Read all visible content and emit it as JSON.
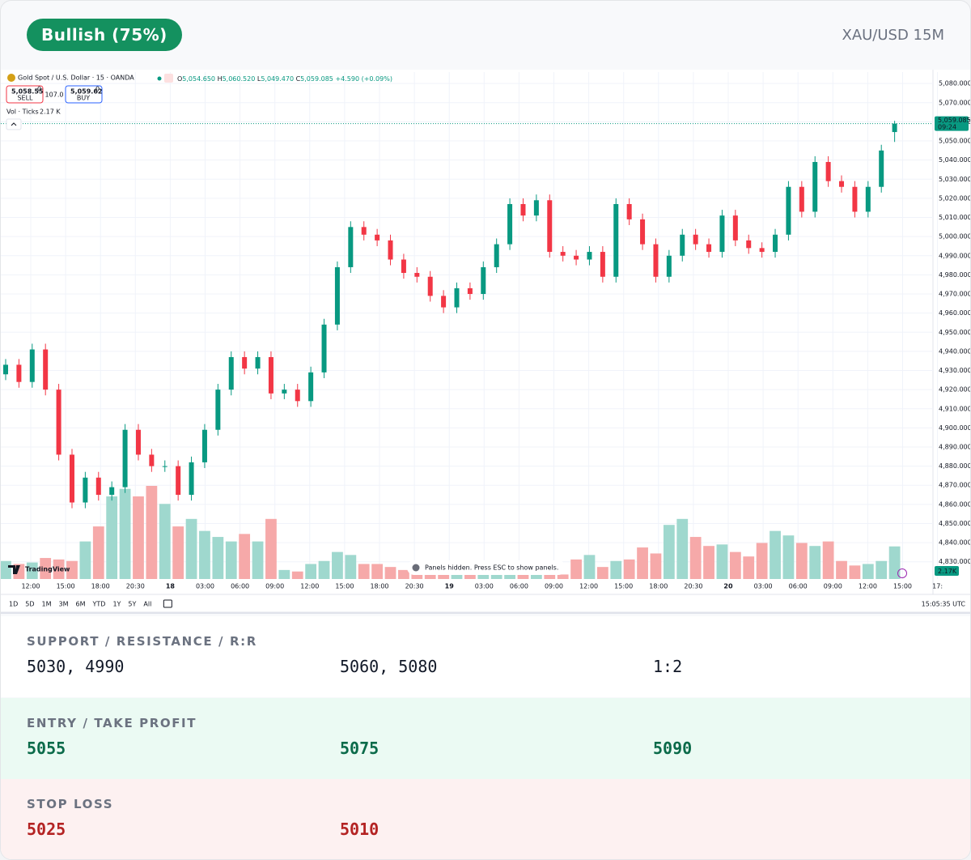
{
  "header": {
    "badge": "Bullish (75%)",
    "symbol": "XAU/USD 15M"
  },
  "chart_data": {
    "type": "candlestick",
    "title": "Gold Spot / U.S. Dollar · 15 · OANDA",
    "legend": [
      {
        "key": "O",
        "value": "5,054.650"
      },
      {
        "key": "H",
        "value": "5,060.520"
      },
      {
        "key": "L",
        "value": "5,049.470"
      },
      {
        "key": "C",
        "value": "5,059.085"
      }
    ],
    "change": "+4.590 (+0.09%)",
    "sell": {
      "price": "5,058.55",
      "sup": "0",
      "label": "SELL"
    },
    "spread": "107.0",
    "buy": {
      "price": "5,059.62",
      "sup": "0",
      "label": "BUY"
    },
    "volume_title": "Vol · Ticks",
    "volume_value": "2.17 K",
    "last_price": {
      "value": 5059.085,
      "label": "5,059.085",
      "countdown": "09:24"
    },
    "last_volume": "2.17K",
    "notice": "Panels hidden. Press ESC to show panels.",
    "brand": "TradingView",
    "ranges": [
      "1D",
      "5D",
      "1M",
      "3M",
      "6M",
      "YTD",
      "1Y",
      "5Y",
      "All"
    ],
    "clock": "15:05:35 UTC",
    "xtick_labels": [
      "12:00",
      "15:00",
      "18:00",
      "20:30",
      "18",
      "03:00",
      "06:00",
      "09:00",
      "12:00",
      "15:00",
      "18:00",
      "20:30",
      "19",
      "03:00",
      "06:00",
      "09:00",
      "12:00",
      "15:00",
      "18:00",
      "20:30",
      "20",
      "03:00",
      "06:00",
      "09:00",
      "12:00",
      "15:00",
      "17:"
    ],
    "open": [
      4928,
      4933,
      4924,
      4941,
      4920,
      4886,
      4861,
      4874,
      4865,
      4869,
      4899,
      4886,
      4880,
      4880,
      4865,
      4882,
      4899,
      4920,
      4937,
      4931,
      4937,
      4918,
      4920,
      4914,
      4929,
      4954,
      4984,
      5005,
      5001,
      4998,
      4988,
      4981,
      4979,
      4969,
      4963,
      4973,
      4970,
      4984,
      4996,
      5017,
      5011,
      5019,
      4992,
      4990,
      4988,
      4992,
      4979,
      5017,
      5009,
      4996,
      4979,
      4990,
      5001,
      4996,
      4992,
      5011,
      4998,
      4994,
      4992,
      5001,
      5026,
      5013,
      5039,
      5029,
      5026,
      5013,
      5026,
      5054.65
    ],
    "high": [
      4936,
      4936,
      4944,
      4944,
      4923,
      4889,
      4877,
      4877,
      4872,
      4902,
      4902,
      4889,
      4883,
      4883,
      4885,
      4902,
      4923,
      4940,
      4940,
      4940,
      4940,
      4923,
      4923,
      4932,
      4957,
      4987,
      5008,
      5008,
      5004,
      5001,
      4991,
      4984,
      4982,
      4972,
      4976,
      4976,
      4987,
      4999,
      5020,
      5020,
      5022,
      5022,
      4995,
      4993,
      4995,
      4995,
      5020,
      5020,
      5012,
      4999,
      4993,
      5004,
      5004,
      4999,
      5014,
      5014,
      5001,
      4997,
      5004,
      5029,
      5029,
      5042,
      5042,
      5032,
      5029,
      5029,
      5048,
      5060.52
    ],
    "low": [
      4925,
      4921,
      4921,
      4917,
      4883,
      4858,
      4858,
      4862,
      4862,
      4866,
      4883,
      4877,
      4877,
      4862,
      4862,
      4879,
      4896,
      4917,
      4928,
      4928,
      4915,
      4915,
      4911,
      4911,
      4926,
      4951,
      4981,
      4998,
      4995,
      4985,
      4978,
      4976,
      4966,
      4960,
      4960,
      4967,
      4967,
      4981,
      4993,
      5008,
      5008,
      4989,
      4987,
      4985,
      4985,
      4976,
      4976,
      5006,
      4993,
      4976,
      4976,
      4987,
      4993,
      4989,
      4989,
      4995,
      4991,
      4989,
      4989,
      4998,
      5010,
      5010,
      5026,
      5023,
      5010,
      5010,
      5023,
      5049.47
    ],
    "close": [
      4933,
      4924,
      4941,
      4920,
      4886,
      4861,
      4874,
      4865,
      4869,
      4899,
      4886,
      4880,
      4880,
      4865,
      4882,
      4899,
      4920,
      4937,
      4931,
      4937,
      4918,
      4920,
      4914,
      4929,
      4954,
      4984,
      5005,
      5001,
      4998,
      4988,
      4981,
      4979,
      4969,
      4963,
      4973,
      4970,
      4984,
      4996,
      5017,
      5011,
      5019,
      4992,
      4990,
      4988,
      4992,
      4979,
      5017,
      5009,
      4996,
      4979,
      4990,
      5001,
      4996,
      4992,
      5011,
      4998,
      4994,
      4992,
      5001,
      5026,
      5013,
      5039,
      5029,
      5026,
      5013,
      5026,
      5045,
      5059.085
    ],
    "volumes": [
      1.2,
      1.0,
      1.1,
      1.4,
      1.3,
      1.2,
      2.5,
      3.5,
      5.5,
      6.0,
      5.5,
      6.2,
      5.0,
      3.5,
      4.0,
      3.2,
      2.8,
      2.5,
      3.0,
      2.5,
      4.0,
      0.6,
      0.5,
      1.0,
      1.2,
      1.8,
      1.6,
      1.0,
      1.0,
      0.8,
      0.6,
      0.5,
      0.4,
      0.3,
      0.3,
      0.3,
      0.3,
      0.3,
      0.3,
      0.3,
      0.3,
      0.3,
      0.3,
      1.3,
      1.6,
      0.8,
      1.2,
      1.3,
      2.1,
      1.7,
      3.6,
      4.0,
      2.8,
      2.2,
      2.3,
      1.8,
      1.5,
      2.4,
      3.2,
      2.9,
      2.4,
      2.2,
      2.5,
      1.2,
      0.9,
      1.0,
      1.2,
      2.17
    ],
    "ylim": [
      4821,
      5086
    ],
    "yticks": [
      {
        "value": 4830,
        "label": "4,830.000"
      },
      {
        "value": 4840,
        "label": "4,840.000"
      },
      {
        "value": 4850,
        "label": "4,850.000"
      },
      {
        "value": 4860,
        "label": "4,860.000"
      },
      {
        "value": 4870,
        "label": "4,870.000"
      },
      {
        "value": 4880,
        "label": "4,880.000"
      },
      {
        "value": 4890,
        "label": "4,890.000"
      },
      {
        "value": 4900,
        "label": "4,900.000"
      },
      {
        "value": 4910,
        "label": "4,910.000"
      },
      {
        "value": 4920,
        "label": "4,920.000"
      },
      {
        "value": 4930,
        "label": "4,930.000"
      },
      {
        "value": 4940,
        "label": "4,940.000"
      },
      {
        "value": 4950,
        "label": "4,950.000"
      },
      {
        "value": 4960,
        "label": "4,960.000"
      },
      {
        "value": 4970,
        "label": "4,970.000"
      },
      {
        "value": 4980,
        "label": "4,980.000"
      },
      {
        "value": 4990,
        "label": "4,990.000"
      },
      {
        "value": 5000,
        "label": "5,000.000"
      },
      {
        "value": 5010,
        "label": "5,010.000"
      },
      {
        "value": 5020,
        "label": "5,020.000"
      },
      {
        "value": 5030,
        "label": "5,030.000"
      },
      {
        "value": 5040,
        "label": "5,040.000"
      },
      {
        "value": 5050,
        "label": "5,050.000"
      },
      {
        "value": 5060,
        "label": "5,060.000"
      },
      {
        "value": 5070,
        "label": "5,070.000"
      },
      {
        "value": 5080,
        "label": "5,080.000"
      }
    ],
    "grid": true,
    "up_color": "#089981",
    "down_color": "#f23645",
    "up_volume_color": "#9fd8ce",
    "down_volume_color": "#f6a9a9"
  },
  "analysis": [
    {
      "label": "SUPPORT / RESISTANCE / R:R",
      "values": [
        "5030, 4990",
        "5060, 5080",
        "1:2"
      ]
    },
    {
      "label": "ENTRY / TAKE PROFIT",
      "values": [
        "5055",
        "5075",
        "5090"
      ]
    },
    {
      "label": "STOP LOSS",
      "values": [
        "5025",
        "5010"
      ]
    }
  ]
}
